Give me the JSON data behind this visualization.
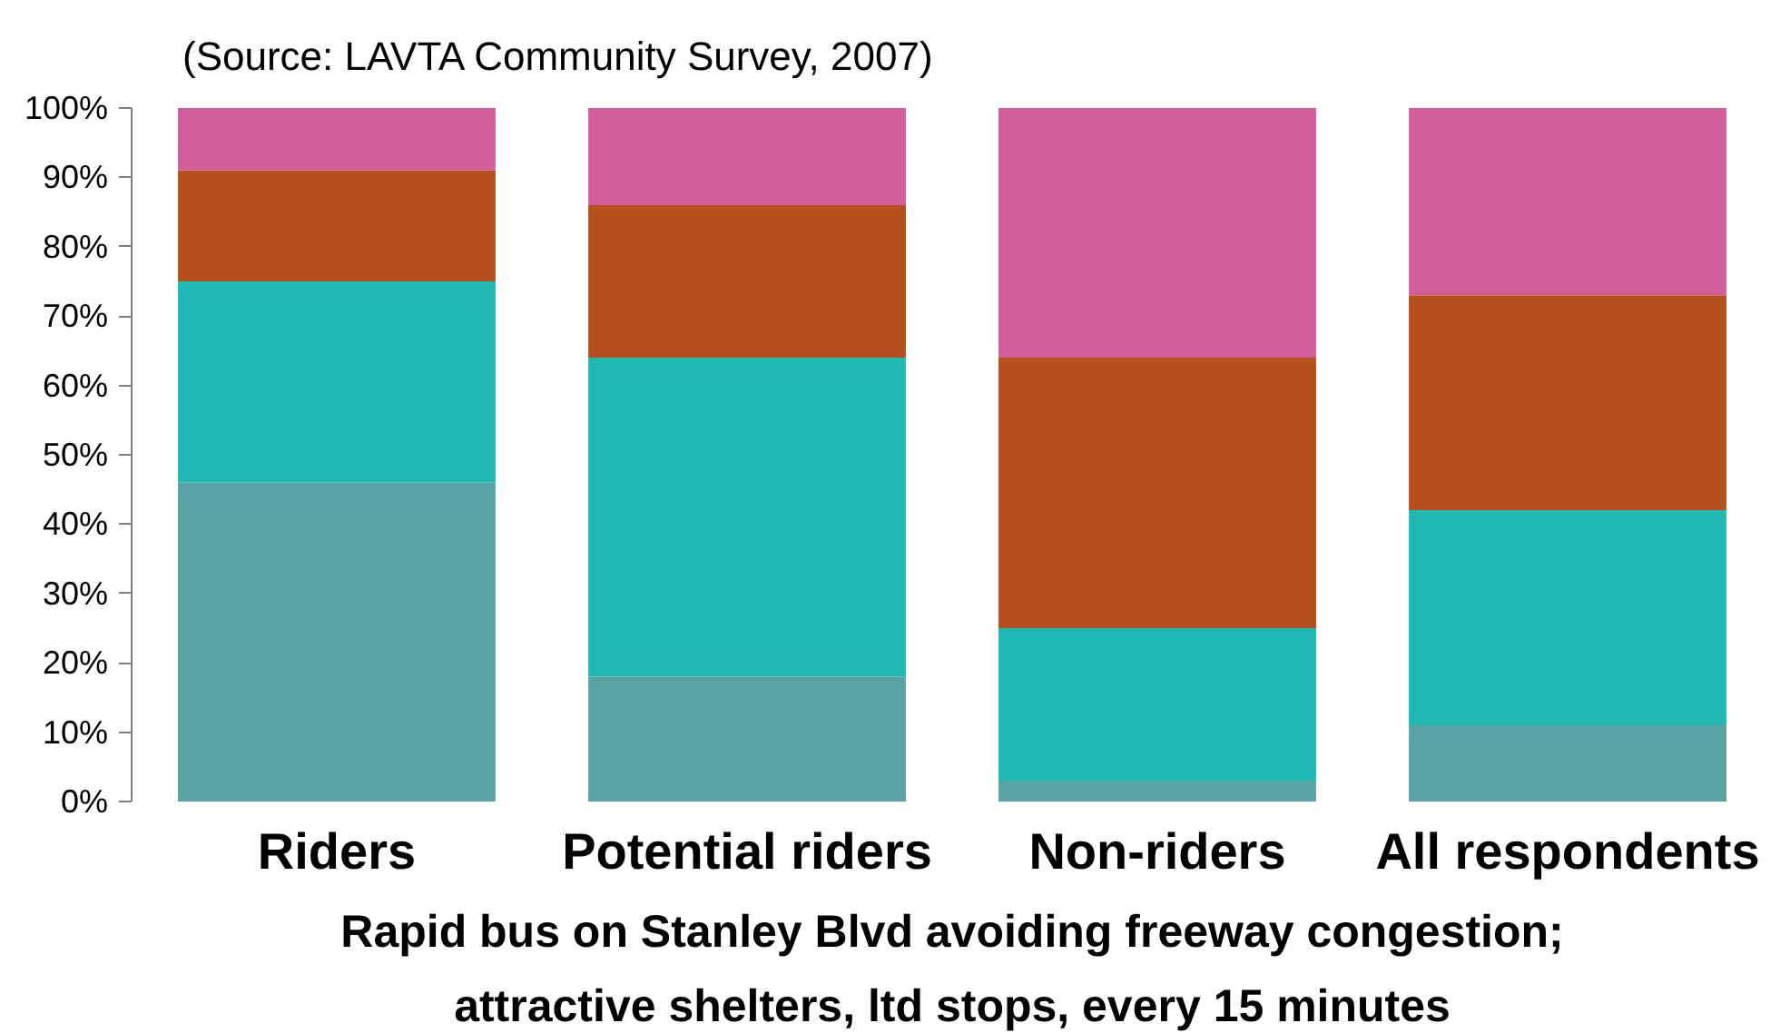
{
  "chart_data": {
    "type": "bar",
    "stacked": true,
    "categories": [
      "Riders",
      "Potential riders",
      "Non-riders",
      "All respondents"
    ],
    "series": [
      {
        "color": "#5aa3a3",
        "values": [
          46,
          18,
          3,
          11
        ]
      },
      {
        "color": "#20b8b2",
        "values": [
          29,
          46,
          22,
          31
        ]
      },
      {
        "color": "#b5501c",
        "values": [
          16,
          22,
          39,
          31
        ]
      },
      {
        "color": "#d35f9a",
        "values": [
          9,
          14,
          36,
          27
        ]
      }
    ],
    "ylim": [
      0,
      100
    ],
    "yticks": [
      {
        "value": 0,
        "label": "0%"
      },
      {
        "value": 10,
        "label": "10%"
      },
      {
        "value": 20,
        "label": "20%"
      },
      {
        "value": 30,
        "label": "30%"
      },
      {
        "value": 40,
        "label": "40%"
      },
      {
        "value": 50,
        "label": "50%"
      },
      {
        "value": 60,
        "label": "60%"
      },
      {
        "value": 70,
        "label": "70%"
      },
      {
        "value": 80,
        "label": "80%"
      },
      {
        "value": 90,
        "label": "90%"
      },
      {
        "value": 100,
        "label": "100%"
      }
    ],
    "xlabel": "Rapid bus on Stanley Blvd avoiding freeway congestion; attractive shelters, ltd stops, every 15 minutes",
    "annotations": [
      "(Source: LAVTA Community Survey, 2007)"
    ]
  }
}
